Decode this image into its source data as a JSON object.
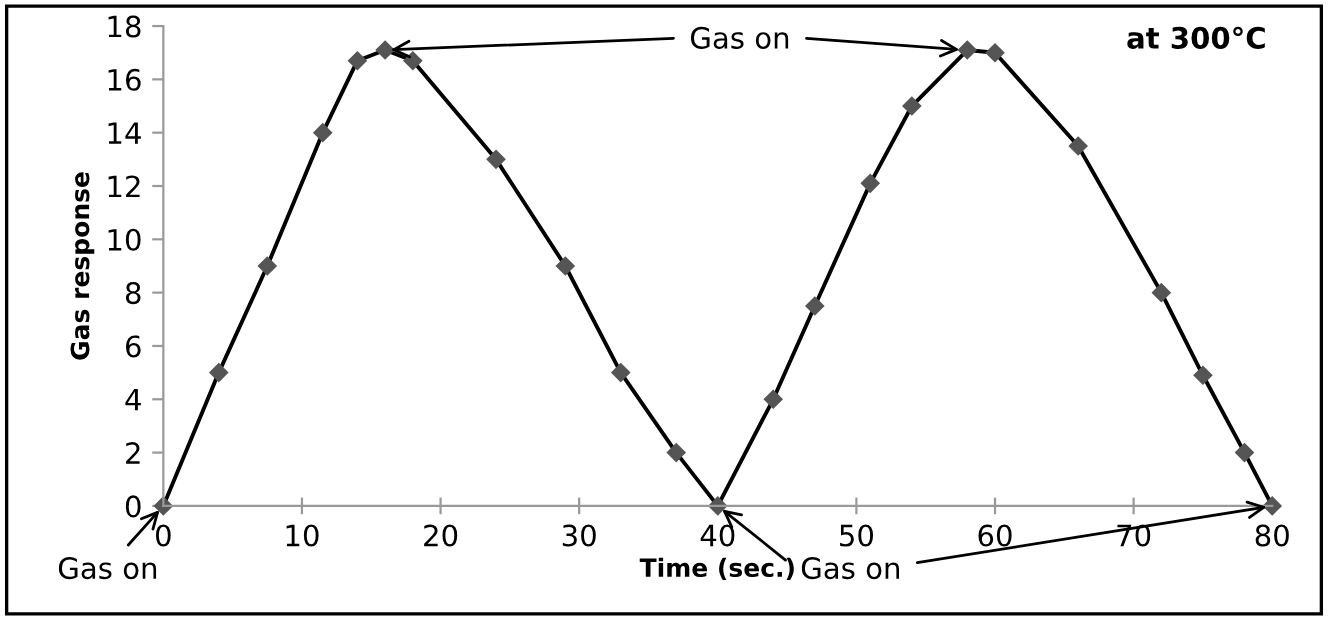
{
  "chart_data": {
    "type": "line",
    "xlabel": "Time (sec.)",
    "ylabel": "Gas response",
    "x": [
      0,
      4,
      7.5,
      11.5,
      14,
      16,
      18,
      24,
      29,
      33,
      37,
      40,
      44,
      47,
      51,
      54,
      58,
      60,
      66,
      72,
      75,
      78,
      80
    ],
    "series": [
      {
        "color": "#000000",
        "values": [
          0,
          5,
          9,
          14,
          16.7,
          17.1,
          16.7,
          13,
          9,
          5,
          2,
          0,
          4,
          7.5,
          12.1,
          15,
          17.1,
          17,
          13.5,
          8,
          4.9,
          2,
          0
        ]
      }
    ],
    "marker": "diamond",
    "line_style": "solid",
    "grid": false,
    "legend": false,
    "xlim": [
      0,
      80
    ],
    "xticks": [
      0,
      10,
      20,
      30,
      40,
      50,
      60,
      70,
      80
    ],
    "ylim": [
      0,
      18
    ],
    "yticks": [
      0,
      2,
      4,
      6,
      8,
      10,
      12,
      14,
      16,
      18
    ],
    "annotations": [
      {
        "text": "Gas on",
        "x": 0,
        "y": 0
      },
      {
        "text": "Gas on",
        "x": 16,
        "y": 17.1
      },
      {
        "text": "Gas on",
        "x": 40,
        "y": 0
      },
      "at 300°C"
    ]
  }
}
